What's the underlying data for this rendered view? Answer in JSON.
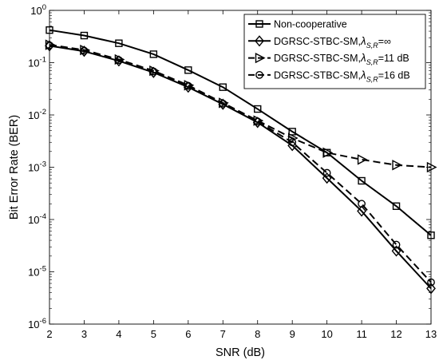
{
  "chart_data": {
    "type": "line",
    "xlabel": "SNR (dB)",
    "ylabel": "Bit Error Rate (BER)",
    "x": [
      2,
      3,
      4,
      5,
      6,
      7,
      8,
      9,
      10,
      11,
      12,
      13
    ],
    "xlim": [
      2,
      13
    ],
    "ylim": [
      1e-06,
      1
    ],
    "yscale": "log",
    "xticks": [
      "2",
      "3",
      "4",
      "5",
      "6",
      "7",
      "8",
      "9",
      "10",
      "11",
      "12",
      "13"
    ],
    "yticks": [
      {
        "base": "10",
        "exp": "0"
      },
      {
        "base": "10",
        "exp": "-1"
      },
      {
        "base": "10",
        "exp": "-2"
      },
      {
        "base": "10",
        "exp": "-3"
      },
      {
        "base": "10",
        "exp": "-4"
      },
      {
        "base": "10",
        "exp": "-5"
      },
      {
        "base": "10",
        "exp": "-6"
      }
    ],
    "grid": false,
    "legend_position": "top-right",
    "series": [
      {
        "name": "Non-cooperative",
        "legend": {
          "main": "Non-cooperative"
        },
        "marker": "square",
        "line_style": "solid",
        "color": "#000000",
        "values": [
          0.42,
          0.33,
          0.235,
          0.145,
          0.072,
          0.034,
          0.013,
          0.0048,
          0.0019,
          0.00055,
          0.00018,
          5e-05
        ]
      },
      {
        "name": "DGRSC-STBC-SM,λS,R=∞",
        "legend": {
          "main": "DGRSC-STBC-SM,",
          "lambda": "λ",
          "sub": "S,R",
          "tail": "=∞"
        },
        "marker": "diamond",
        "line_style": "solid",
        "color": "#000000",
        "values": [
          0.21,
          0.165,
          0.108,
          0.065,
          0.034,
          0.016,
          0.0072,
          0.0026,
          0.00062,
          0.000145,
          2.5e-05,
          4.8e-06
        ]
      },
      {
        "name": "DGRSC-STBC-SM,λS,R=11 dB",
        "legend": {
          "main": "DGRSC-STBC-SM,",
          "lambda": "λ",
          "sub": "S,R",
          "tail": "=11 dB"
        },
        "marker": "triangle-right",
        "line_style": "dashed",
        "color": "#000000",
        "values": [
          0.22,
          0.175,
          0.115,
          0.07,
          0.037,
          0.017,
          0.0078,
          0.0036,
          0.0019,
          0.0014,
          0.0011,
          0.001
        ]
      },
      {
        "name": "DGRSC-STBC-SM,λS,R=16 dB",
        "legend": {
          "main": "DGRSC-STBC-SM,",
          "lambda": "λ",
          "sub": "S,R",
          "tail": "=16 dB"
        },
        "marker": "circle",
        "line_style": "dashed",
        "color": "#000000",
        "values": [
          0.215,
          0.17,
          0.112,
          0.068,
          0.036,
          0.0165,
          0.0075,
          0.003,
          0.00078,
          0.0002,
          3.3e-05,
          6.3e-06
        ]
      }
    ]
  }
}
